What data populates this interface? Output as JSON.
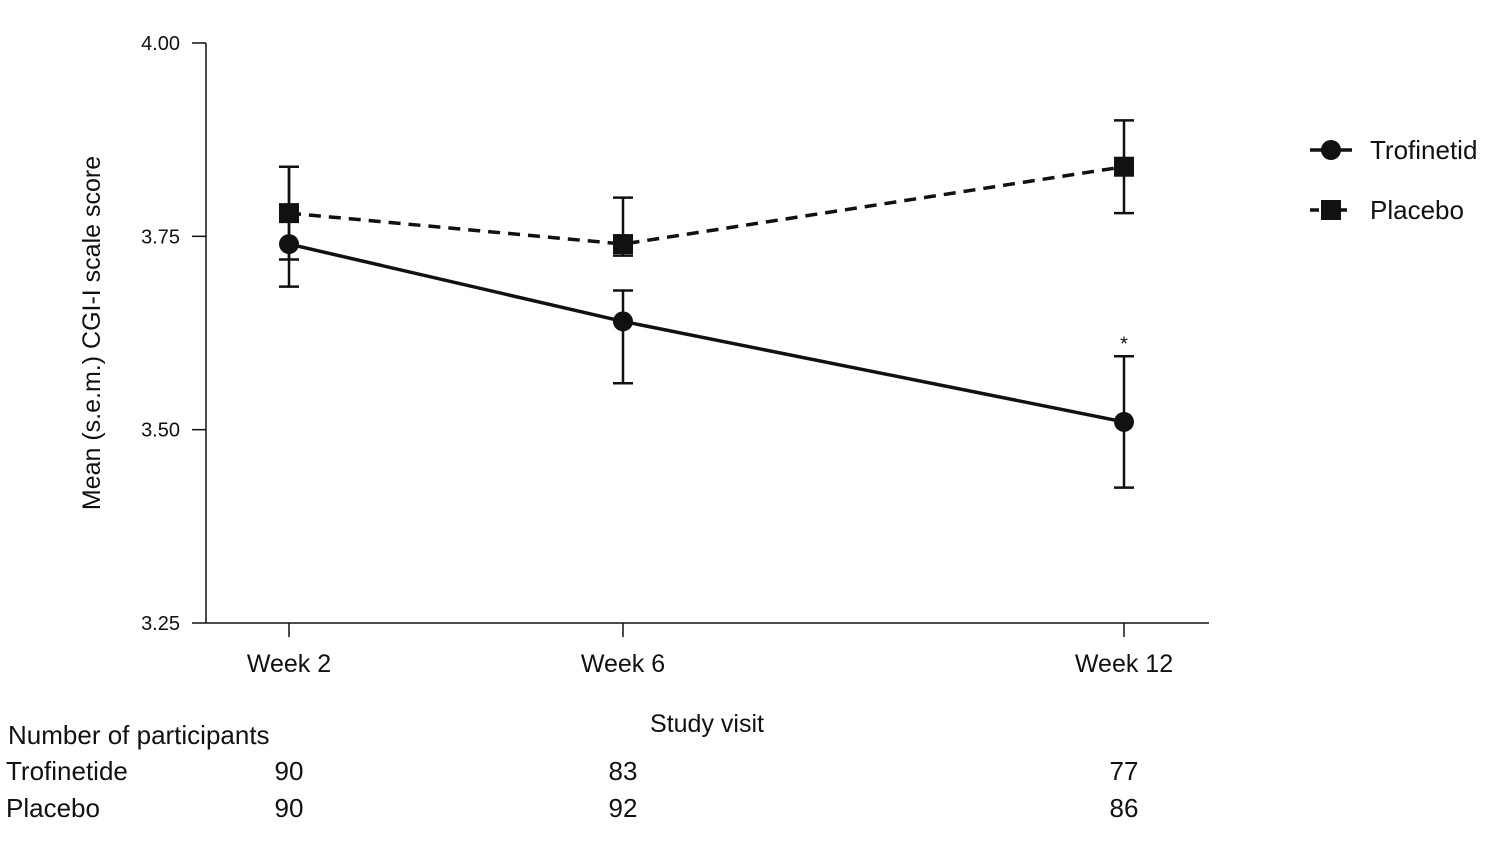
{
  "chart_data": {
    "type": "line",
    "title": "",
    "xlabel": "Study visit",
    "ylabel": "Mean (s.e.m.) CGI-I scale score",
    "categories": [
      "Week 2",
      "Week 6",
      "Week 12"
    ],
    "x_weeks": [
      2,
      6,
      12
    ],
    "xlim": [
      1,
      13
    ],
    "ylim": [
      3.25,
      4.0
    ],
    "yticks": [
      3.25,
      3.5,
      3.75,
      4.0
    ],
    "ytick_labels": [
      "3.25",
      "3.50",
      "3.75",
      "4.00"
    ],
    "grid": false,
    "legend_position": "top-right",
    "series": [
      {
        "name": "Trofinetid",
        "marker": "circle",
        "line_style": "solid",
        "values": [
          3.74,
          3.64,
          3.51
        ],
        "error_upper": [
          3.84,
          3.68,
          3.595
        ],
        "error_lower": [
          3.685,
          3.56,
          3.425
        ]
      },
      {
        "name": "Placebo",
        "marker": "square",
        "line_style": "dashed",
        "values": [
          3.78,
          3.74,
          3.84
        ],
        "error_upper": [
          3.84,
          3.8,
          3.9
        ],
        "error_lower": [
          3.72,
          3.725,
          3.78
        ]
      }
    ],
    "annotations": [
      {
        "text": "*",
        "category": "Week 12",
        "y": 3.615
      }
    ],
    "color": "#111111"
  },
  "participants": {
    "title": "Number of participants",
    "rows": [
      {
        "label": "Trofinetide",
        "counts": [
          "90",
          "83",
          "77"
        ]
      },
      {
        "label": "Placebo",
        "counts": [
          "90",
          "92",
          "86"
        ]
      }
    ]
  }
}
